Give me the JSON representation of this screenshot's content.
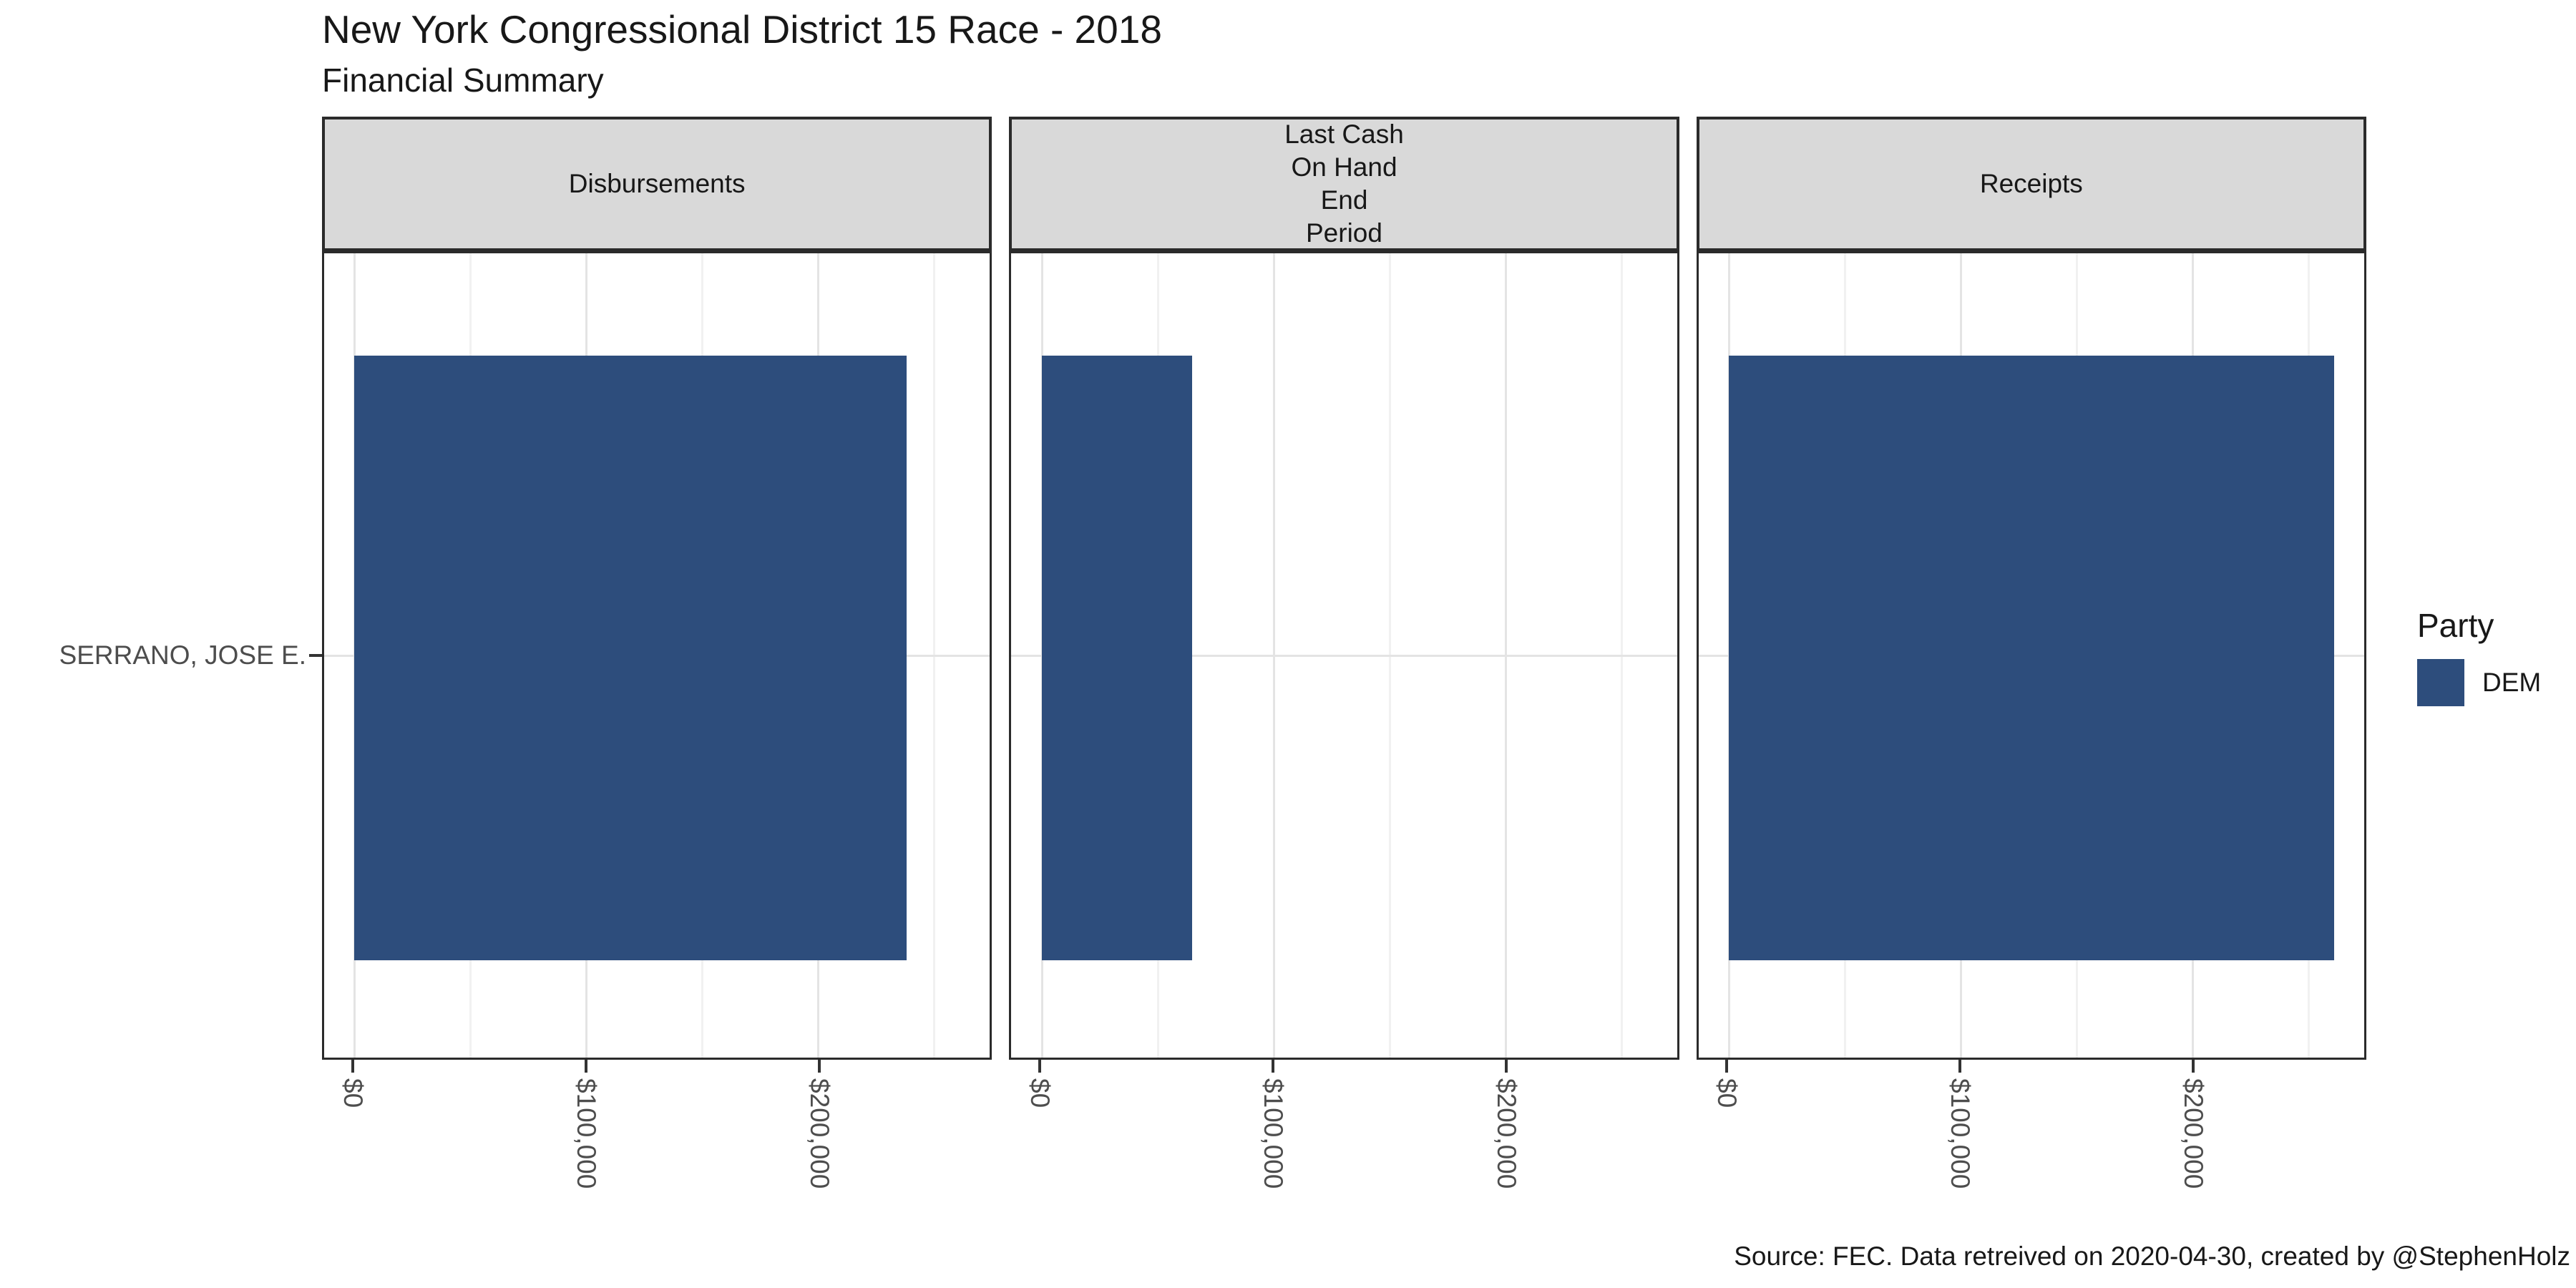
{
  "caption": "Source: FEC. Data retreived on 2020-04-30, created by @StephenHolz",
  "chart_data": {
    "type": "bar",
    "orientation": "horizontal",
    "title": "New York Congressional District 15 Race - 2018",
    "subtitle": "Financial Summary",
    "grid": true,
    "category_axis": {
      "categories": [
        "SERRANO, JOSE E."
      ]
    },
    "value_axis": {
      "domain": [
        -13050,
        274050
      ],
      "ticks": [
        {
          "value": 0,
          "label": "$0"
        },
        {
          "value": 100000,
          "label": "$100,000"
        },
        {
          "value": 200000,
          "label": "$200,000"
        }
      ],
      "minor_ticks": [
        50000,
        150000,
        250000
      ]
    },
    "facets": [
      {
        "strip_lines": [
          "Disbursements"
        ],
        "category": "SERRANO, JOSE E.",
        "series": "DEM",
        "value": 238000
      },
      {
        "strip_lines": [
          "Last Cash",
          "On Hand",
          "End",
          "Period"
        ],
        "category": "SERRANO, JOSE E.",
        "series": "DEM",
        "value": 65000
      },
      {
        "strip_lines": [
          "Receipts"
        ],
        "category": "SERRANO, JOSE E.",
        "series": "DEM",
        "value": 261000
      }
    ],
    "legend": {
      "title": "Party",
      "position": "right",
      "items": [
        {
          "label": "DEM",
          "color": "#2d4d7c"
        }
      ]
    },
    "colors": {
      "bar": "#2d4d7c",
      "strip_background": "#d9d9d9",
      "panel_border": "#2b2b2b",
      "major_gridline": "#e4e4e4",
      "minor_gridline": "#f1f1f1",
      "axis_text": "#4d4d4d"
    }
  }
}
